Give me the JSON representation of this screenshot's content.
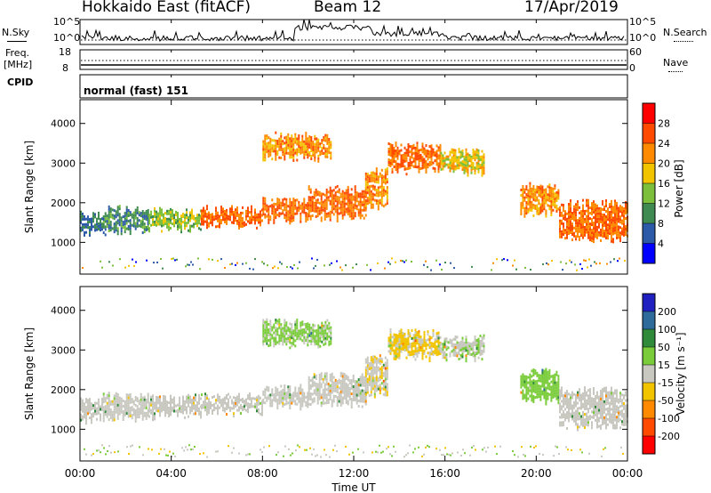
{
  "header": {
    "radar": "Hokkaido East (fitACF)",
    "beam": "Beam 12",
    "date": "17/Apr/2019"
  },
  "top_panel": {
    "nsky_label": "N.Sky",
    "nsky_ticks": [
      "10^5",
      "10^0"
    ],
    "nsearch_label": "N.Search",
    "nsearch_ticks": [
      "10^5",
      "10^0"
    ],
    "freq_label_1": "Freq.",
    "freq_label_2": "[MHz]",
    "freq_ticks": [
      "18",
      "8"
    ],
    "nave_label": "Nave",
    "nave_ticks": [
      "60",
      "0"
    ],
    "cpid_label": "CPID",
    "cpid_value": "normal (fast) 151"
  },
  "chart_data": [
    {
      "type": "heatmap",
      "parameter": "power",
      "ylabel": "Slant Range [km]",
      "ylim": [
        200,
        4600
      ],
      "yticks": [
        "1000",
        "2000",
        "3000",
        "4000"
      ],
      "colorbar_label": "Power [dB]",
      "colorbar_ticks": [
        "4",
        "8",
        "12",
        "16",
        "20",
        "24",
        "28"
      ],
      "colorbar_colors": [
        "#0000ff",
        "#2d5aa8",
        "#3f8a50",
        "#7bbf3a",
        "#f2c400",
        "#ff8a00",
        "#ff4a00",
        "#ff0000"
      ],
      "echo_bands": [
        {
          "t": [
            0.0,
            1.0
          ],
          "range": [
            1150,
            1800
          ],
          "power": 12
        },
        {
          "t": [
            1.0,
            3.0
          ],
          "range": [
            1200,
            1950
          ],
          "power": 14
        },
        {
          "t": [
            3.0,
            5.3
          ],
          "range": [
            1250,
            1900
          ],
          "power": 18
        },
        {
          "t": [
            5.3,
            8.0
          ],
          "range": [
            1350,
            1950
          ],
          "power": 28
        },
        {
          "t": [
            8.0,
            10.0
          ],
          "range": [
            1500,
            2150
          ],
          "power": 28
        },
        {
          "t": [
            10.0,
            12.5
          ],
          "range": [
            1550,
            2450
          ],
          "power": 28
        },
        {
          "t": [
            12.5,
            13.5
          ],
          "range": [
            1800,
            2900
          ],
          "power": 26
        },
        {
          "t": [
            13.5,
            15.8
          ],
          "range": [
            2750,
            3550
          ],
          "power": 28
        },
        {
          "t": [
            15.8,
            17.7
          ],
          "range": [
            2700,
            3400
          ],
          "power": 22
        },
        {
          "t": [
            8.0,
            11.0
          ],
          "range": [
            3050,
            3800
          ],
          "power": 26
        },
        {
          "t": [
            19.3,
            21.0
          ],
          "range": [
            1650,
            2550
          ],
          "power": 26
        },
        {
          "t": [
            21.0,
            24.0
          ],
          "range": [
            1000,
            2100
          ],
          "power": 28
        }
      ]
    },
    {
      "type": "heatmap",
      "parameter": "velocity",
      "xlabel": "Time UT",
      "xticks": [
        "00:00",
        "04:00",
        "08:00",
        "12:00",
        "16:00",
        "20:00",
        "00:00"
      ],
      "ylabel": "Slant Range [km]",
      "ylim": [
        200,
        4600
      ],
      "yticks": [
        "1000",
        "2000",
        "3000",
        "4000"
      ],
      "colorbar_label": "Velocity [m s⁻¹]",
      "colorbar_ticks": [
        "200",
        "100",
        "50",
        "15",
        "-15",
        "-50",
        "-100",
        "-200"
      ],
      "colorbar_colors": [
        "#2020c0",
        "#2e6a9a",
        "#2f8a3a",
        "#7acc3a",
        "#c8c8c0",
        "#f2c400",
        "#ff8a00",
        "#ff4a00",
        "#ff0000"
      ],
      "echo_bands": [
        {
          "t": [
            0.0,
            1.0
          ],
          "range": [
            1150,
            1800
          ],
          "velocity": 0
        },
        {
          "t": [
            1.0,
            3.0
          ],
          "range": [
            1200,
            1950
          ],
          "velocity": 0
        },
        {
          "t": [
            3.0,
            5.3
          ],
          "range": [
            1250,
            1900
          ],
          "velocity": 0
        },
        {
          "t": [
            5.3,
            8.0
          ],
          "range": [
            1350,
            1950
          ],
          "velocity": 0
        },
        {
          "t": [
            8.0,
            10.0
          ],
          "range": [
            1500,
            2150
          ],
          "velocity": 0
        },
        {
          "t": [
            10.0,
            12.5
          ],
          "range": [
            1550,
            2450
          ],
          "velocity": 0
        },
        {
          "t": [
            12.5,
            13.5
          ],
          "range": [
            1800,
            2900
          ],
          "velocity": -10
        },
        {
          "t": [
            13.5,
            15.8
          ],
          "range": [
            2750,
            3550
          ],
          "velocity": -20
        },
        {
          "t": [
            15.8,
            17.7
          ],
          "range": [
            2700,
            3400
          ],
          "velocity": 10
        },
        {
          "t": [
            8.0,
            11.0
          ],
          "range": [
            3050,
            3800
          ],
          "velocity": 20
        },
        {
          "t": [
            19.3,
            21.0
          ],
          "range": [
            1650,
            2550
          ],
          "velocity": 30
        },
        {
          "t": [
            21.0,
            24.0
          ],
          "range": [
            1000,
            2100
          ],
          "velocity": 0
        }
      ]
    }
  ]
}
